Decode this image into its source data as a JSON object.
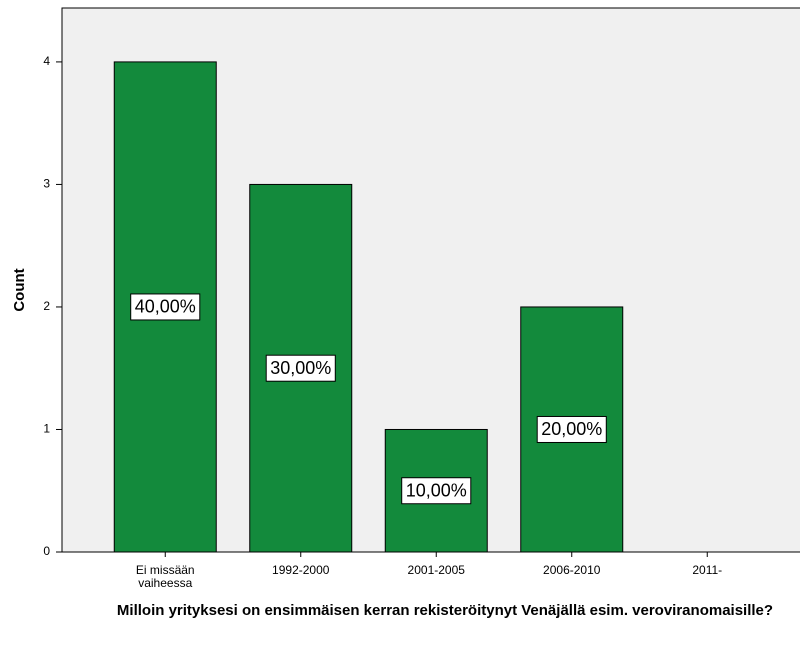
{
  "chart_data": {
    "type": "bar",
    "x_label": "Milloin yrityksesi on ensimmäisen kerran rekisteröitynyt Venäjällä esim. veroviranomaisille?",
    "y_label": "Count",
    "categories": [
      "Ei missään vaiheessa",
      "1992-2000",
      "2001-2005",
      "2006-2010",
      "2011-"
    ],
    "values": [
      4,
      3,
      1,
      2,
      0
    ],
    "percent_labels": [
      "40,00%",
      "30,00%",
      "10,00%",
      "20,00%",
      null
    ],
    "color": "#138a3c",
    "ylim": [
      0,
      4.44
    ],
    "yticks": [
      0,
      1,
      2,
      3,
      4
    ],
    "grid": false
  }
}
